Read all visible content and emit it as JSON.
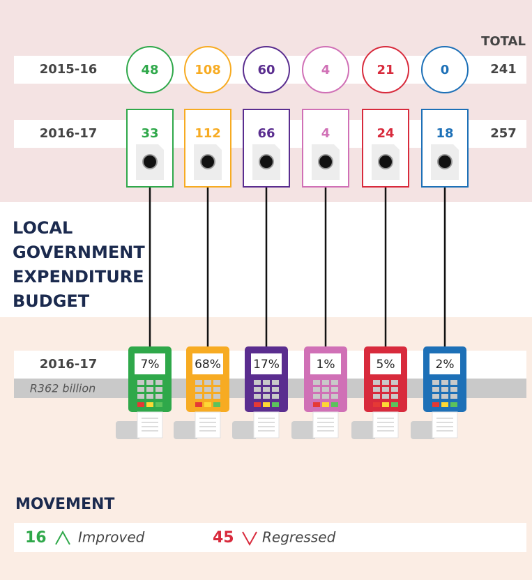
{
  "header": {
    "total_label": "TOTAL"
  },
  "colors": [
    "#2fa84a",
    "#f7ab22",
    "#5a2d8f",
    "#d070b6",
    "#d82a3c",
    "#1d70b7"
  ],
  "rows": [
    {
      "label": "2015-16",
      "values": [
        48,
        108,
        60,
        4,
        21,
        0
      ],
      "total": 241
    },
    {
      "label": "2016-17",
      "values": [
        33,
        112,
        66,
        4,
        24,
        18
      ],
      "total": 257
    }
  ],
  "title_lines": [
    "LOCAL",
    "GOVERNMENT",
    "EXPENDITURE",
    "BUDGET"
  ],
  "budget": {
    "label": "2016-17",
    "amount": "R362 billion",
    "shares": [
      "7%",
      "68%",
      "17%",
      "1%",
      "5%",
      "2%"
    ]
  },
  "movement": {
    "title": "MOVEMENT",
    "improved": {
      "count": 16,
      "label": "Improved"
    },
    "regressed": {
      "count": 45,
      "label": "Regressed"
    }
  }
}
